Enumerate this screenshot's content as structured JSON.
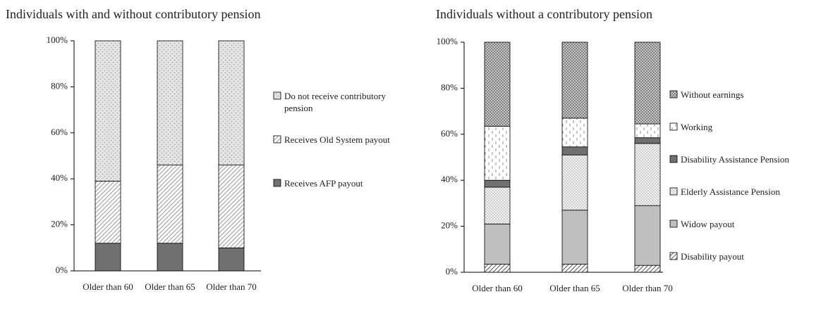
{
  "chart_data": [
    {
      "type": "stacked_bar",
      "title": "Individuals with and without contributory pension",
      "categories": [
        "Older than 60",
        "Older than 65",
        "Older than 70"
      ],
      "series": [
        {
          "name": "Receives AFP payout",
          "color": "#707070",
          "pattern": "solid",
          "values": [
            12,
            12,
            10
          ]
        },
        {
          "name": "Receives Old System payout",
          "color": "#a8a8a8",
          "pattern": "hatch",
          "values": [
            27,
            34,
            36
          ]
        },
        {
          "name": "Do not receive contributory pension",
          "color": "#a0a0a0",
          "pattern": "dots",
          "values": [
            61,
            54,
            54
          ]
        }
      ],
      "ylim": [
        0,
        100
      ],
      "yticks": [
        {
          "value": 0,
          "label": "0%"
        },
        {
          "value": 20,
          "label": "20%"
        },
        {
          "value": 40,
          "label": "40%"
        },
        {
          "value": 60,
          "label": "60%"
        },
        {
          "value": 80,
          "label": "80%"
        },
        {
          "value": 100,
          "label": "100%"
        }
      ],
      "grid": false,
      "legend": "right"
    },
    {
      "type": "stacked_bar",
      "title": "Individuals without a contributory pension",
      "categories": [
        "Older than 60",
        "Older than 65",
        "Older than 70"
      ],
      "series": [
        {
          "name": "Disability payout",
          "color": "#707070",
          "pattern": "hatch",
          "values": [
            3.5,
            3.5,
            3
          ]
        },
        {
          "name": "Widow payout",
          "color": "#bfbfbf",
          "pattern": "solid",
          "values": [
            17.5,
            23.5,
            26
          ]
        },
        {
          "name": "Elderly Assistance Pension",
          "color": "#a8a8a8",
          "pattern": "checker-light",
          "values": [
            16,
            24,
            27
          ]
        },
        {
          "name": "Disability Assistance Pension",
          "color": "#707070",
          "pattern": "solid",
          "values": [
            3,
            3.5,
            2.5
          ]
        },
        {
          "name": "Working",
          "color": "#909090",
          "pattern": "dashes",
          "values": [
            23.5,
            12.5,
            6
          ]
        },
        {
          "name": "Without earnings",
          "color": "#808080",
          "pattern": "checker",
          "values": [
            36.5,
            33,
            35.5
          ]
        }
      ],
      "ylim": [
        0,
        100
      ],
      "yticks": [
        {
          "value": 0,
          "label": "0%"
        },
        {
          "value": 20,
          "label": "20%"
        },
        {
          "value": 40,
          "label": "40%"
        },
        {
          "value": 60,
          "label": "60%"
        },
        {
          "value": 80,
          "label": "80%"
        },
        {
          "value": 100,
          "label": "100%"
        }
      ],
      "grid": false,
      "legend": "right"
    }
  ]
}
